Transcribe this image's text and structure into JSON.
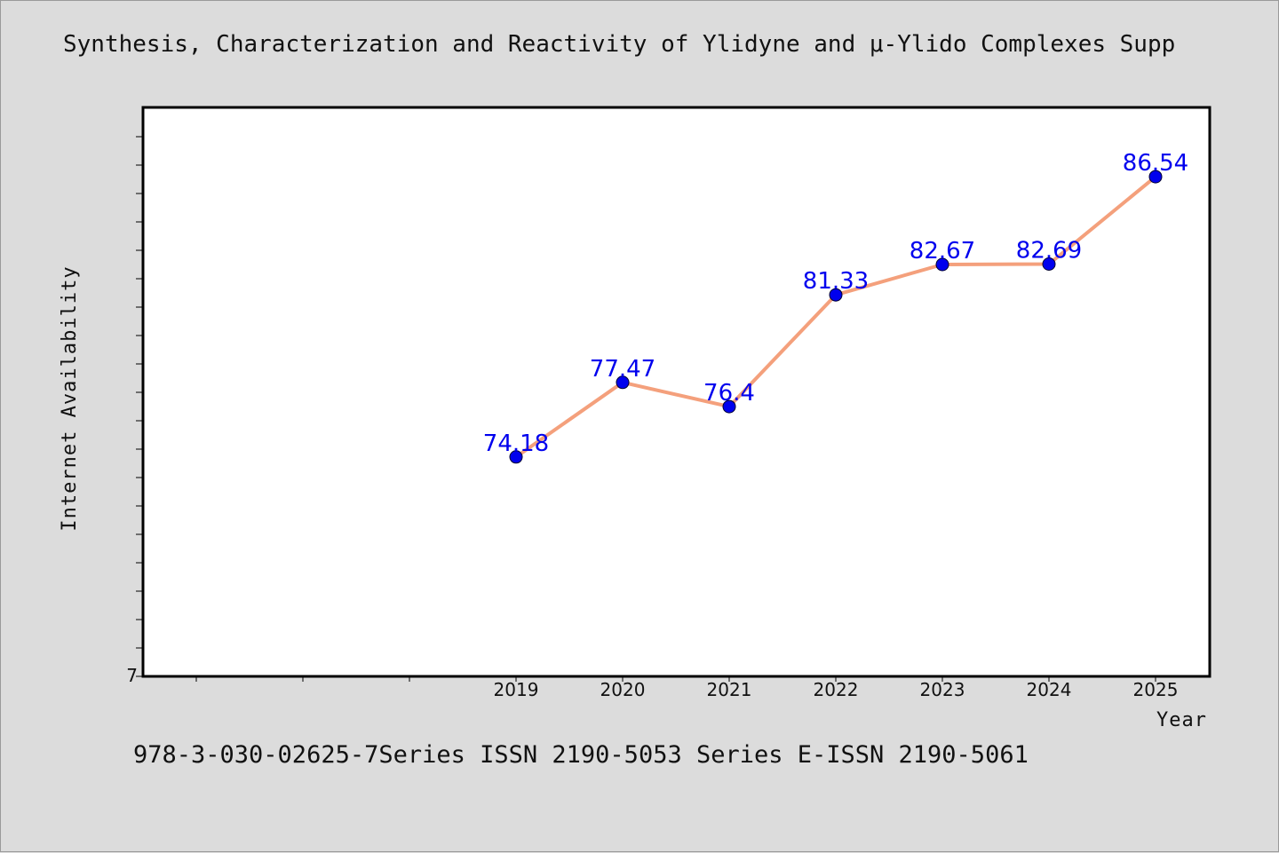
{
  "title": "Synthesis, Characterization and Reactivity of Ylidyne and μ-Ylido Complexes Supp",
  "footer": "978-3-030-02625-7Series ISSN 2190-5053 Series E-ISSN 2190-5061",
  "colors": {
    "background": "#dcdcdc",
    "plot_background": "#ffffff",
    "line": "#f4a07c",
    "marker": "#0000ee",
    "label": "#0000ee"
  },
  "chart_data": {
    "type": "line",
    "xlabel": "Year",
    "ylabel": "Internet Availability",
    "y_tick_labels": [
      "7"
    ],
    "x": [
      "2019",
      "2020",
      "2021",
      "2022",
      "2023",
      "2024",
      "2025"
    ],
    "ylim": [
      64.5,
      89.6
    ],
    "series": [
      {
        "values": [
          74.18,
          77.47,
          76.4,
          81.33,
          82.67,
          82.69,
          86.54
        ],
        "labels": [
          "74.18",
          "77.47",
          "76.4",
          "81.33",
          "82.67",
          "82.69",
          "86.54"
        ]
      }
    ],
    "grid": false,
    "legend": "none"
  }
}
